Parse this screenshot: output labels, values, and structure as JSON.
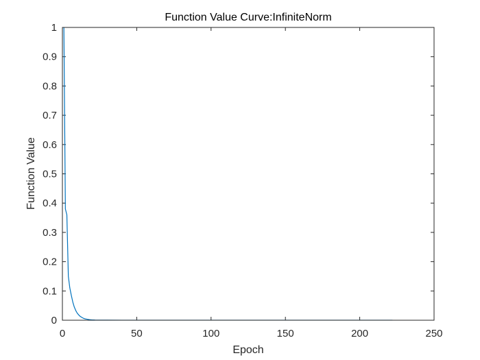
{
  "chart_data": {
    "type": "line",
    "title": "Function Value Curve:InfiniteNorm",
    "xlabel": "Epoch",
    "ylabel": "Function Value",
    "xlim": [
      0,
      250
    ],
    "ylim": [
      0,
      1
    ],
    "xticks": [
      0,
      50,
      100,
      150,
      200,
      250
    ],
    "xtick_labels": [
      "0",
      "50",
      "100",
      "150",
      "200",
      "250"
    ],
    "yticks": [
      0,
      0.1,
      0.2,
      0.3,
      0.4,
      0.5,
      0.6,
      0.7,
      0.8,
      0.9,
      1
    ],
    "ytick_labels": [
      "0",
      "0.1",
      "0.2",
      "0.3",
      "0.4",
      "0.5",
      "0.6",
      "0.7",
      "0.8",
      "0.9",
      "1"
    ],
    "grid": false,
    "box": true,
    "colors": {
      "line": "#0072BD",
      "axes": "#262626",
      "background": "#ffffff"
    },
    "series": [
      {
        "x": [
          1,
          2,
          3,
          4,
          5,
          6,
          7,
          8,
          9,
          10,
          11,
          12,
          13,
          14,
          15,
          16,
          17,
          18,
          19,
          20,
          22,
          25,
          30,
          40,
          50,
          75,
          100,
          150,
          200,
          222
        ],
        "values": [
          1.0,
          0.38,
          0.36,
          0.15,
          0.11,
          0.085,
          0.062,
          0.045,
          0.033,
          0.024,
          0.018,
          0.013,
          0.01,
          0.007,
          0.005,
          0.004,
          0.003,
          0.0022,
          0.0016,
          0.0012,
          0.0007,
          0.0004,
          0.0002,
          0.0001,
          0.0001,
          0.0001,
          0.0001,
          0.0001,
          0.0001,
          0.0001
        ]
      }
    ]
  }
}
